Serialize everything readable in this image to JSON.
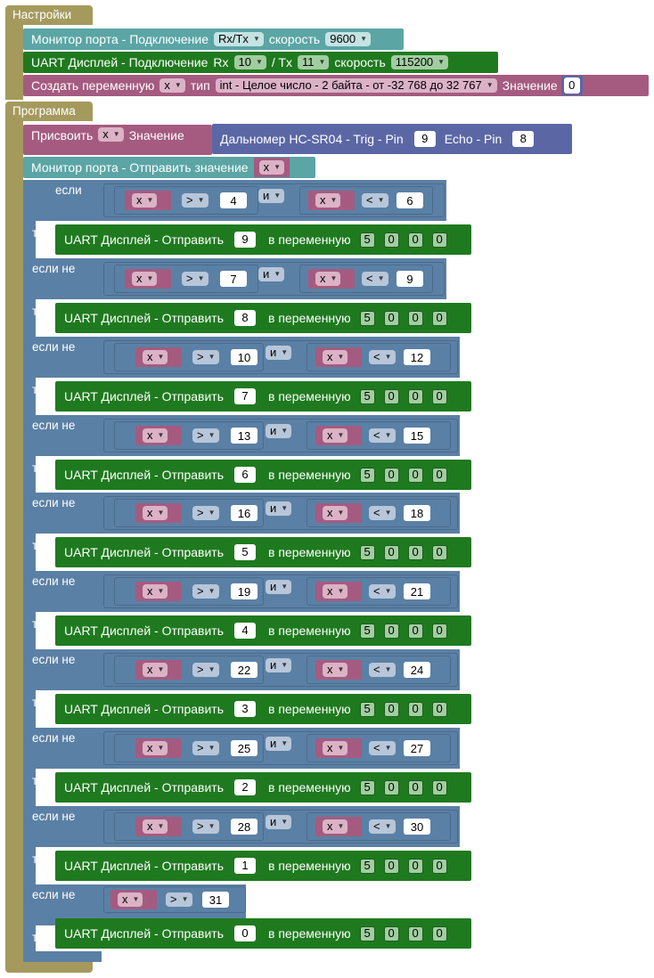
{
  "settings": {
    "hat_label": "Настройки",
    "port_monitor": {
      "label": "Монитор порта - Подключение",
      "mode": "Rx/Tx",
      "speed_label": "скорость",
      "speed": "9600"
    },
    "uart_display": {
      "label": "UART Дисплей - Подключение",
      "rx_label": "Rx",
      "rx": "10",
      "tx_label": "/ Tx",
      "tx": "11",
      "speed_label": "скорость",
      "speed": "115200"
    },
    "create_var": {
      "label": "Создать переменную",
      "var": "x",
      "type_label": "тип",
      "type": "int - Целое число - 2 байта - от -32 768 до 32 767",
      "value_label": "Значение",
      "value": "0"
    }
  },
  "program": {
    "hat_label": "Программа",
    "assign": {
      "label": "Присвоить",
      "var": "x",
      "value_label": "Значение",
      "sensor_label": "Дальномер HC-SR04 - Trig - Pin",
      "trig": "9",
      "echo_label": "Echo - Pin",
      "echo": "8"
    },
    "monitor_send": {
      "label": "Монитор порта - Отправить значение",
      "var": "x"
    },
    "if_kw": "если",
    "elseif_kw": "если не",
    "then_kw": "то",
    "and_kw": "и",
    "send_label": "UART Дисплей - Отправить",
    "to_var_label": "в переменную",
    "branches": [
      {
        "var1": "x",
        "op1": ">",
        "n1": "4",
        "and": "и",
        "var2": "x",
        "op2": "<",
        "n2": "6",
        "send": "9",
        "digits": [
          "5",
          "0",
          "0",
          "0"
        ]
      },
      {
        "var1": "x",
        "op1": ">",
        "n1": "7",
        "and": "и",
        "var2": "x",
        "op2": "<",
        "n2": "9",
        "send": "8",
        "digits": [
          "5",
          "0",
          "0",
          "0"
        ]
      },
      {
        "var1": "x",
        "op1": ">",
        "n1": "10",
        "and": "и",
        "var2": "x",
        "op2": "<",
        "n2": "12",
        "send": "7",
        "digits": [
          "5",
          "0",
          "0",
          "0"
        ]
      },
      {
        "var1": "x",
        "op1": ">",
        "n1": "13",
        "and": "и",
        "var2": "x",
        "op2": "<",
        "n2": "15",
        "send": "6",
        "digits": [
          "5",
          "0",
          "0",
          "0"
        ]
      },
      {
        "var1": "x",
        "op1": ">",
        "n1": "16",
        "and": "и",
        "var2": "x",
        "op2": "<",
        "n2": "18",
        "send": "5",
        "digits": [
          "5",
          "0",
          "0",
          "0"
        ]
      },
      {
        "var1": "x",
        "op1": ">",
        "n1": "19",
        "and": "и",
        "var2": "x",
        "op2": "<",
        "n2": "21",
        "send": "4",
        "digits": [
          "5",
          "0",
          "0",
          "0"
        ]
      },
      {
        "var1": "x",
        "op1": ">",
        "n1": "22",
        "and": "и",
        "var2": "x",
        "op2": "<",
        "n2": "24",
        "send": "3",
        "digits": [
          "5",
          "0",
          "0",
          "0"
        ]
      },
      {
        "var1": "x",
        "op1": ">",
        "n1": "25",
        "and": "и",
        "var2": "x",
        "op2": "<",
        "n2": "27",
        "send": "2",
        "digits": [
          "5",
          "0",
          "0",
          "0"
        ]
      },
      {
        "var1": "x",
        "op1": ">",
        "n1": "28",
        "and": "и",
        "var2": "x",
        "op2": "<",
        "n2": "30",
        "send": "1",
        "digits": [
          "5",
          "0",
          "0",
          "0"
        ]
      },
      {
        "var1": "x",
        "op1": ">",
        "n1": "31",
        "send": "0",
        "digits": [
          "5",
          "0",
          "0",
          "0"
        ]
      }
    ]
  }
}
